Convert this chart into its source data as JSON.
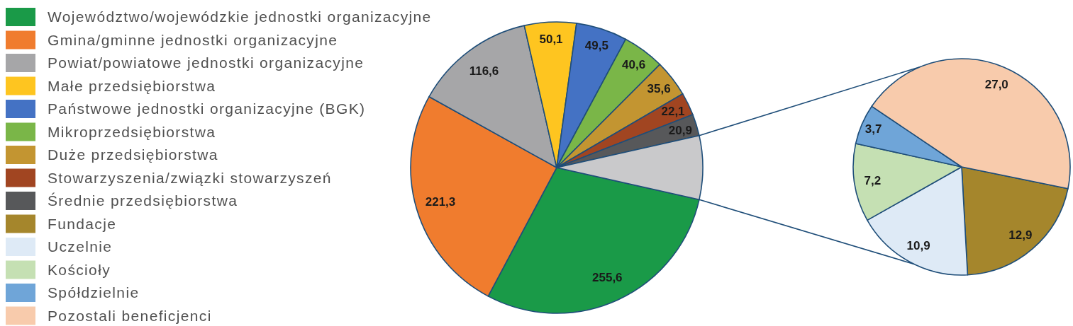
{
  "chart_data": [
    {
      "type": "pie",
      "categories": [
        "Województwo/wojewódzkie jednostki organizacyjne",
        "Gmina/gminne jednostki organizacyjne",
        "Powiat/powiatowe jednostki organizacyjne",
        "Małe przedsiębiorstwa",
        "Państwowe jednostki organizacyjne (BGK)",
        "Mikroprzedsiębiorstwa",
        "Duże przedsiębiorstwa",
        "Stowarzyszenia/związki stowarzyszeń",
        "Średnie przedsiębiorstwa",
        null
      ],
      "values": [
        255.6,
        221.3,
        116.6,
        50.1,
        49.5,
        40.6,
        35.6,
        22.1,
        20.9,
        61.7
      ],
      "colors": [
        "#1a9a48",
        "#f07c2e",
        "#a6a6a8",
        "#fec520",
        "#4472c4",
        "#7ab648",
        "#c39531",
        "#a14521",
        "#57585a",
        "#c9c9cb"
      ],
      "value_labels": [
        "255,6",
        "221,3",
        "116,6",
        "50,1",
        "49,5",
        "40,6",
        "35,6",
        "22,1",
        "20,9",
        null
      ],
      "legend": "left"
    },
    {
      "type": "pie",
      "categories": [
        "Fundacje",
        "Uczelnie",
        "Kościoły",
        "Spółdzielnie",
        "Pozostali beneficjenci"
      ],
      "values": [
        12.9,
        10.9,
        7.2,
        3.7,
        27.0
      ],
      "colors": [
        "#a5862c",
        "#deeaf6",
        "#c5e0b3",
        "#6fa5d8",
        "#f8cbac"
      ],
      "value_labels": [
        "12,9",
        "10,9",
        "7,2",
        "3,7",
        "27,0"
      ],
      "legend": "left"
    }
  ]
}
